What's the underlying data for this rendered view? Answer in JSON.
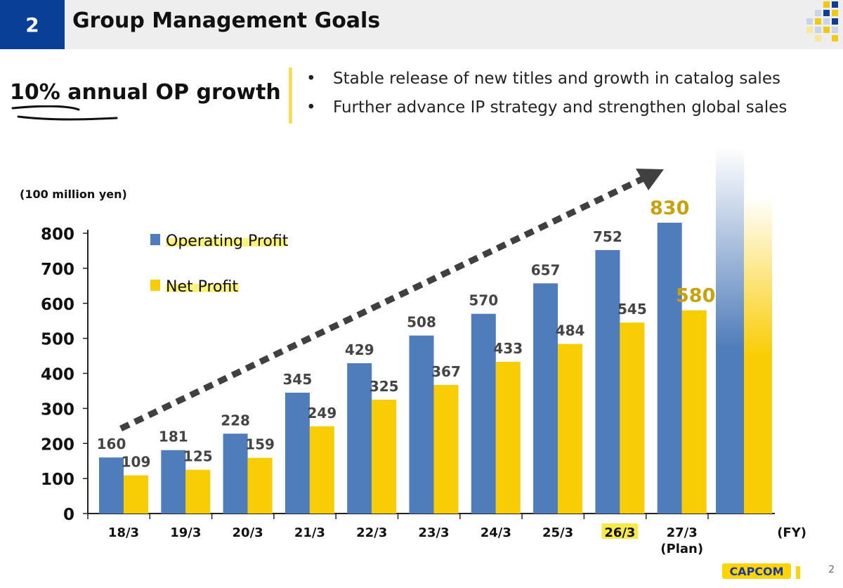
{
  "header": {
    "number": "2",
    "title": "Group Management Goals"
  },
  "goal": {
    "text": "10% annual OP growth"
  },
  "bullets": [
    {
      "marker": "•",
      "text": "Stable release of new titles and growth in catalog sales"
    },
    {
      "marker": "•",
      "text": "Further advance IP strategy and strengthen global sales"
    }
  ],
  "chart_data": {
    "type": "bar",
    "unit_label": "(100 million yen)",
    "x_unit": "(FY)",
    "categories": [
      "18/3",
      "19/3",
      "20/3",
      "21/3",
      "22/3",
      "23/3",
      "24/3",
      "25/3",
      "26/3",
      "27/3"
    ],
    "category_sublabels": [
      "",
      "",
      "",
      "",
      "",
      "",
      "",
      "",
      "",
      "(Plan)"
    ],
    "highlighted_category": "26/3",
    "series": [
      {
        "name": "Operating Profit",
        "color": "#4f7cba",
        "values": [
          160,
          181,
          228,
          345,
          429,
          508,
          570,
          657,
          752,
          830
        ]
      },
      {
        "name": "Net Profit",
        "color": "#f9cd05",
        "values": [
          109,
          125,
          159,
          249,
          325,
          367,
          433,
          484,
          545,
          580
        ]
      }
    ],
    "highlighted_value_color": "#c8a20c",
    "ylim": [
      0,
      800
    ],
    "yticks": [
      0,
      100,
      200,
      300,
      400,
      500,
      600,
      700,
      800
    ],
    "legend_position": "top-left",
    "trend_arrow": true,
    "grid": false
  },
  "footer": {
    "logo_text": "CAPCOM",
    "page": "2"
  }
}
